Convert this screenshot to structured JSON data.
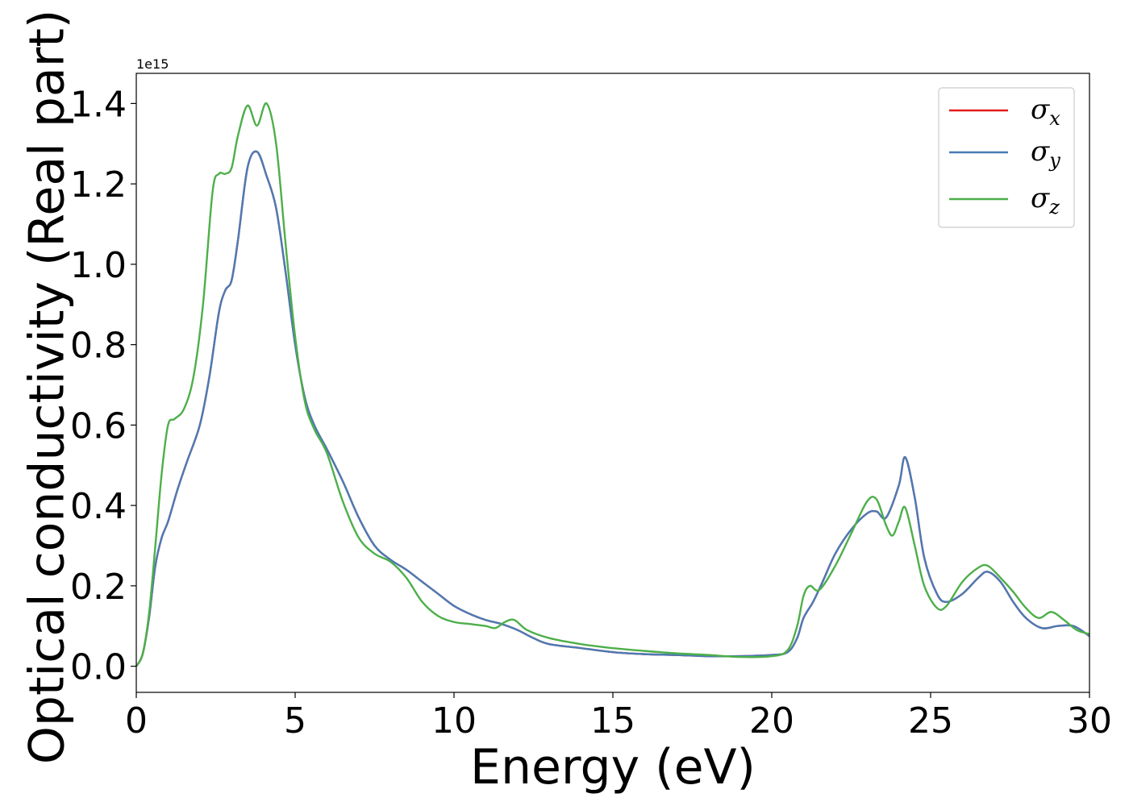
{
  "chart_data": {
    "type": "line",
    "xlabel": "Energy (eV)",
    "ylabel": "Optical conductivity (Real part)",
    "y_offset_text": "1e15",
    "y_scale": 1000000000000000.0,
    "xlim": [
      0,
      30
    ],
    "ylim": [
      -0.065,
      1.475
    ],
    "xticks": [
      0,
      5,
      10,
      15,
      20,
      25,
      30
    ],
    "xtick_labels": [
      "0",
      "5",
      "10",
      "15",
      "20",
      "25",
      "30"
    ],
    "yticks": [
      0.0,
      0.2,
      0.4,
      0.6,
      0.8,
      1.0,
      1.2,
      1.4
    ],
    "ytick_labels": [
      "0.0",
      "0.2",
      "0.4",
      "0.6",
      "0.8",
      "1.0",
      "1.2",
      "1.4"
    ],
    "grid": false,
    "legend_position": "top-right",
    "series": [
      {
        "name": "σx",
        "symbol": "σ",
        "subscript": "x",
        "color": "#e41a1c",
        "x": [
          0,
          0.2,
          0.4,
          0.6,
          0.8,
          1.0,
          1.3,
          1.6,
          2.0,
          2.3,
          2.6,
          2.8,
          3.0,
          3.2,
          3.5,
          3.8,
          4.1,
          4.4,
          4.7,
          5.0,
          5.3,
          5.6,
          6.0,
          6.5,
          7.0,
          7.5,
          8.0,
          8.5,
          9.0,
          9.5,
          10.0,
          10.5,
          11.0,
          11.5,
          12.0,
          12.5,
          13.0,
          14.0,
          15.0,
          16.0,
          17.0,
          18.0,
          19.0,
          20.0,
          20.5,
          20.8,
          21.0,
          21.3,
          21.6,
          22.0,
          22.5,
          23.0,
          23.3,
          23.6,
          24.0,
          24.2,
          24.5,
          24.8,
          25.2,
          25.5,
          26.0,
          26.5,
          26.8,
          27.2,
          27.6,
          28.0,
          28.5,
          29.0,
          29.5,
          30.0
        ],
        "y": [
          0.0,
          0.03,
          0.12,
          0.25,
          0.32,
          0.36,
          0.44,
          0.51,
          0.6,
          0.72,
          0.88,
          0.935,
          0.96,
          1.06,
          1.24,
          1.28,
          1.22,
          1.14,
          0.98,
          0.8,
          0.67,
          0.6,
          0.54,
          0.46,
          0.37,
          0.3,
          0.265,
          0.24,
          0.21,
          0.18,
          0.15,
          0.13,
          0.115,
          0.105,
          0.09,
          0.07,
          0.055,
          0.045,
          0.035,
          0.03,
          0.028,
          0.025,
          0.025,
          0.028,
          0.035,
          0.07,
          0.12,
          0.16,
          0.21,
          0.28,
          0.34,
          0.38,
          0.385,
          0.37,
          0.45,
          0.52,
          0.42,
          0.27,
          0.18,
          0.16,
          0.18,
          0.22,
          0.235,
          0.21,
          0.16,
          0.12,
          0.095,
          0.1,
          0.1,
          0.075
        ]
      },
      {
        "name": "σy",
        "symbol": "σ",
        "subscript": "y",
        "color": "#4a7bb5",
        "x": [
          0,
          0.2,
          0.4,
          0.6,
          0.8,
          1.0,
          1.3,
          1.6,
          2.0,
          2.3,
          2.6,
          2.8,
          3.0,
          3.2,
          3.5,
          3.8,
          4.1,
          4.4,
          4.7,
          5.0,
          5.3,
          5.6,
          6.0,
          6.5,
          7.0,
          7.5,
          8.0,
          8.5,
          9.0,
          9.5,
          10.0,
          10.5,
          11.0,
          11.5,
          12.0,
          12.5,
          13.0,
          14.0,
          15.0,
          16.0,
          17.0,
          18.0,
          19.0,
          20.0,
          20.5,
          20.8,
          21.0,
          21.3,
          21.6,
          22.0,
          22.5,
          23.0,
          23.3,
          23.6,
          24.0,
          24.2,
          24.5,
          24.8,
          25.2,
          25.5,
          26.0,
          26.5,
          26.8,
          27.2,
          27.6,
          28.0,
          28.5,
          29.0,
          29.5,
          30.0
        ],
        "y": [
          0.0,
          0.03,
          0.12,
          0.25,
          0.32,
          0.36,
          0.44,
          0.51,
          0.6,
          0.72,
          0.88,
          0.935,
          0.96,
          1.06,
          1.24,
          1.28,
          1.22,
          1.14,
          0.98,
          0.8,
          0.67,
          0.6,
          0.54,
          0.46,
          0.37,
          0.3,
          0.265,
          0.24,
          0.21,
          0.18,
          0.15,
          0.13,
          0.115,
          0.105,
          0.09,
          0.07,
          0.055,
          0.045,
          0.035,
          0.03,
          0.028,
          0.025,
          0.025,
          0.028,
          0.035,
          0.07,
          0.12,
          0.16,
          0.21,
          0.28,
          0.34,
          0.38,
          0.385,
          0.37,
          0.45,
          0.52,
          0.42,
          0.27,
          0.18,
          0.16,
          0.18,
          0.22,
          0.235,
          0.21,
          0.16,
          0.12,
          0.095,
          0.1,
          0.1,
          0.075
        ]
      },
      {
        "name": "σz",
        "symbol": "σ",
        "subscript": "z",
        "color": "#4daf4a",
        "x": [
          0,
          0.2,
          0.4,
          0.6,
          0.8,
          1.0,
          1.2,
          1.5,
          1.8,
          2.1,
          2.4,
          2.6,
          2.8,
          3.0,
          3.2,
          3.5,
          3.8,
          4.1,
          4.4,
          4.7,
          5.0,
          5.3,
          5.6,
          6.0,
          6.5,
          7.0,
          7.5,
          8.0,
          8.5,
          9.0,
          9.5,
          10.0,
          10.5,
          11.0,
          11.3,
          11.6,
          11.9,
          12.3,
          13.0,
          14.0,
          15.0,
          16.0,
          17.0,
          18.0,
          19.0,
          20.0,
          20.5,
          20.8,
          21.0,
          21.2,
          21.5,
          22.0,
          22.5,
          23.0,
          23.3,
          23.6,
          23.8,
          24.0,
          24.2,
          24.5,
          24.8,
          25.2,
          25.5,
          26.0,
          26.5,
          26.8,
          27.2,
          27.6,
          28.0,
          28.4,
          28.8,
          29.2,
          29.6,
          30.0
        ],
        "y": [
          0.0,
          0.03,
          0.13,
          0.3,
          0.48,
          0.6,
          0.615,
          0.64,
          0.72,
          0.9,
          1.18,
          1.225,
          1.225,
          1.24,
          1.32,
          1.395,
          1.345,
          1.4,
          1.3,
          1.05,
          0.82,
          0.66,
          0.59,
          0.53,
          0.41,
          0.32,
          0.28,
          0.26,
          0.22,
          0.16,
          0.125,
          0.11,
          0.105,
          0.1,
          0.095,
          0.11,
          0.115,
          0.09,
          0.07,
          0.055,
          0.045,
          0.038,
          0.032,
          0.028,
          0.023,
          0.025,
          0.04,
          0.1,
          0.175,
          0.2,
          0.19,
          0.25,
          0.33,
          0.41,
          0.415,
          0.35,
          0.325,
          0.36,
          0.395,
          0.3,
          0.2,
          0.145,
          0.15,
          0.21,
          0.245,
          0.25,
          0.22,
          0.185,
          0.145,
          0.12,
          0.135,
          0.115,
          0.09,
          0.08
        ]
      }
    ]
  }
}
